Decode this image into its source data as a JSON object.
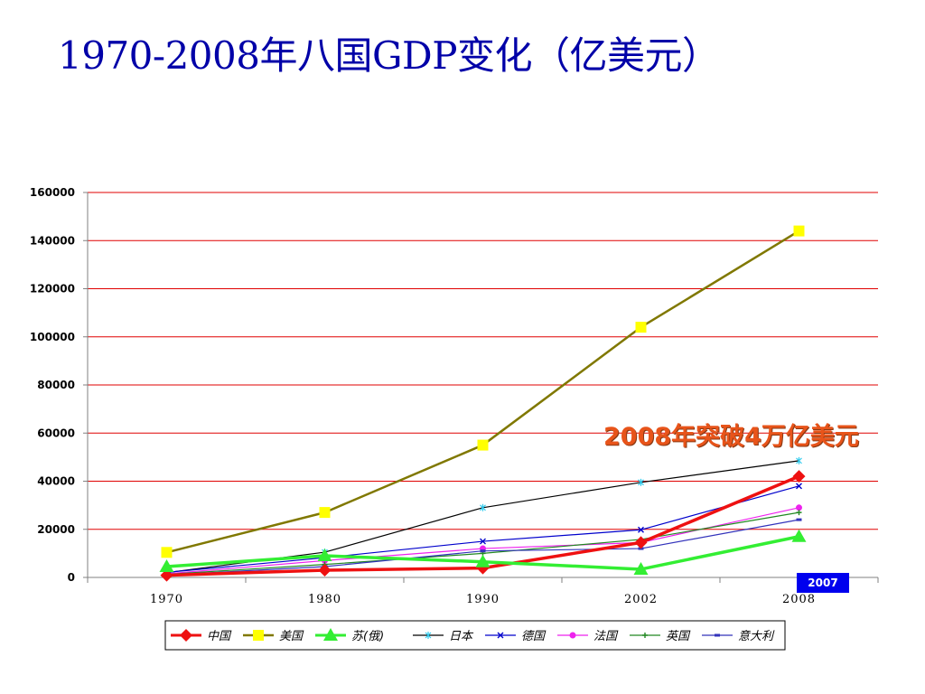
{
  "title": "1970-2008年八国GDP变化（亿美元）",
  "annotation": "2008年突破4万亿美元",
  "badge": "2007",
  "chart_data": {
    "type": "line",
    "title": "",
    "xlabel": "",
    "ylabel": "",
    "categories": [
      "1970",
      "1980",
      "1990",
      "2002",
      "2008"
    ],
    "ylim": [
      0,
      160000
    ],
    "yticks": [
      0,
      20000,
      40000,
      60000,
      80000,
      100000,
      120000,
      140000,
      160000
    ],
    "grid": true,
    "gridColor": "#e00000",
    "legend_position": "bottom",
    "series": [
      {
        "name": "中国",
        "values": [
          900,
          3000,
          3900,
          14500,
          42000
        ],
        "color": "#ee1111",
        "marker": "diamond",
        "width": 3.5
      },
      {
        "name": "美国",
        "values": [
          10400,
          27000,
          55000,
          104000,
          144000
        ],
        "color": "#807800",
        "marker": "square",
        "markerColor": "#ffff00",
        "width": 2.5
      },
      {
        "name": "苏(俄)",
        "values": [
          4500,
          9000,
          6500,
          3400,
          17000
        ],
        "color": "#33ee33",
        "marker": "triangle",
        "width": 3.5
      },
      {
        "name": "日本",
        "values": [
          2000,
          10500,
          29000,
          39500,
          48500
        ],
        "color": "#000000",
        "marker": "star",
        "markerColor": "#33ccee",
        "width": 1.2
      },
      {
        "name": "德国",
        "values": [
          2100,
          8200,
          15000,
          19800,
          38000
        ],
        "color": "#0000cc",
        "marker": "x",
        "width": 1.2
      },
      {
        "name": "法国",
        "values": [
          1500,
          7000,
          12000,
          14500,
          29000
        ],
        "color": "#ee22ee",
        "marker": "circle",
        "width": 1.2
      },
      {
        "name": "英国",
        "values": [
          1300,
          5400,
          10000,
          15800,
          27000
        ],
        "color": "#228822",
        "marker": "plus",
        "width": 1.2
      },
      {
        "name": "意大利",
        "values": [
          1000,
          4500,
          11000,
          12000,
          24000
        ],
        "color": "#3333bb",
        "marker": "dash",
        "width": 1.2
      }
    ]
  }
}
